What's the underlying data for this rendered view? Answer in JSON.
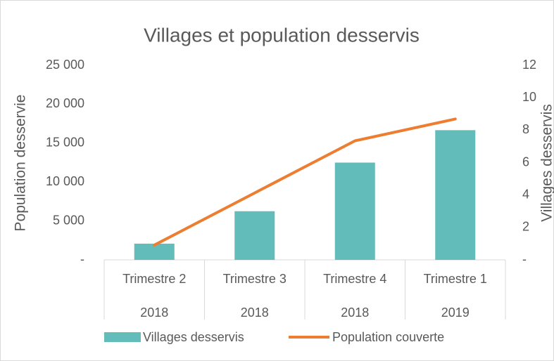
{
  "chart_data": {
    "type": "bar_line_combo",
    "title": "Villages et population desservis",
    "ylabel": "Population desservie",
    "y2label": "Villages desservis",
    "categories": [
      "Trimestre 2",
      "Trimestre 3",
      "Trimestre 4",
      "Trimestre 1"
    ],
    "category_groups": [
      "2018",
      "2018",
      "2018",
      "2019"
    ],
    "series": [
      {
        "name": "Villages desservis",
        "type": "bar",
        "axis": "y2",
        "color": "#62bdba",
        "values": [
          1,
          3,
          6,
          8
        ]
      },
      {
        "name": "Population couverte",
        "type": "line",
        "axis": "y",
        "color": "#ed7d31",
        "values": [
          1900,
          8600,
          15300,
          18100
        ]
      }
    ],
    "ylim": [
      0,
      25000
    ],
    "yticks": [
      {
        "value": 0,
        "label": "-"
      },
      {
        "value": 5000,
        "label": "5 000"
      },
      {
        "value": 10000,
        "label": "10 000"
      },
      {
        "value": 15000,
        "label": "15 000"
      },
      {
        "value": 20000,
        "label": "20 000"
      },
      {
        "value": 25000,
        "label": "25 000"
      }
    ],
    "y2lim": [
      0,
      12
    ],
    "y2ticks": [
      {
        "value": 0,
        "label": "-"
      },
      2,
      4,
      6,
      8,
      10,
      12
    ],
    "legend": "bottom"
  }
}
